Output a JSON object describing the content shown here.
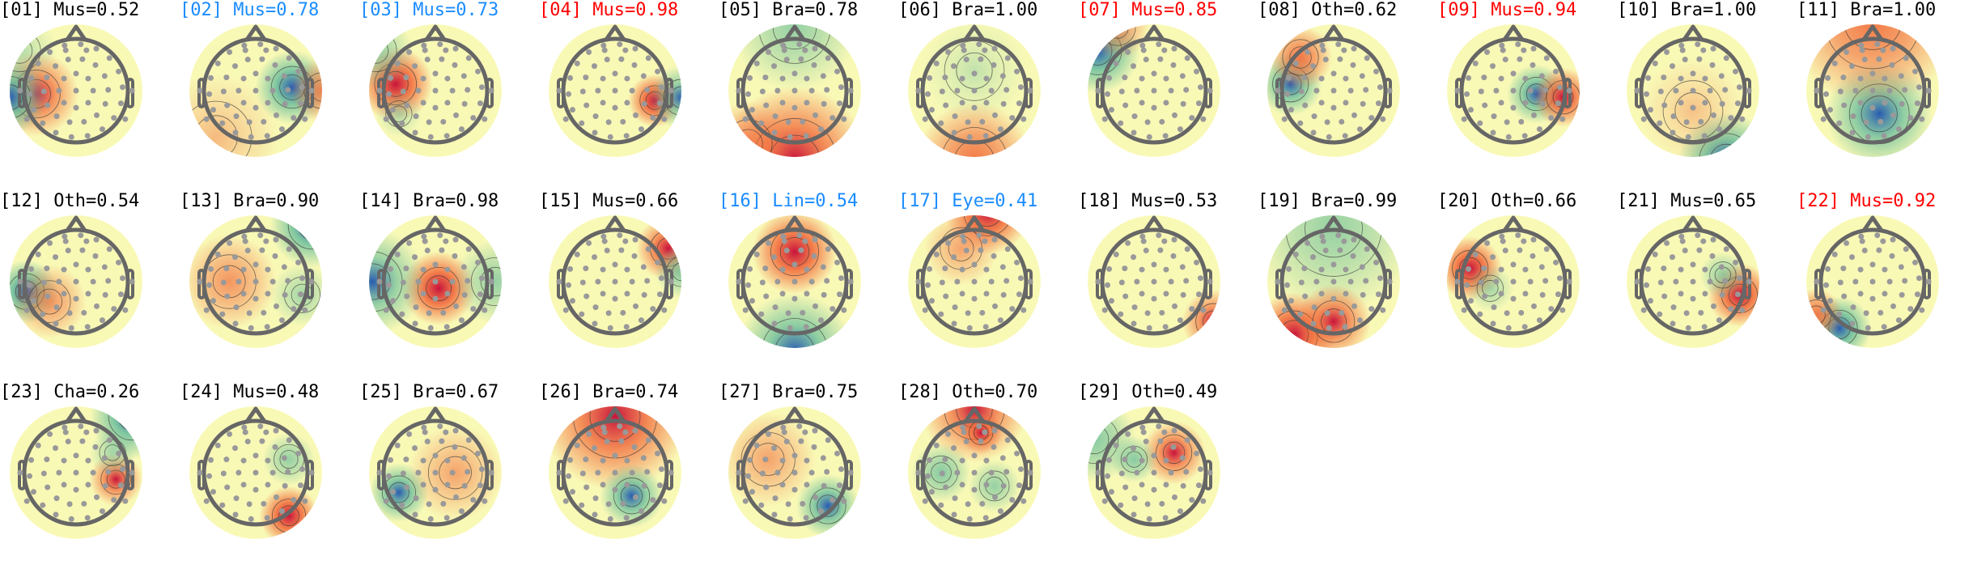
{
  "colors": {
    "default": "#000000",
    "blue": "#1a8cff",
    "red": "#ff0000",
    "pos_strong": "#c8143c",
    "pos": "#f26b3a",
    "neg_strong": "#2a5cb0",
    "neg": "#6cbf9c",
    "base": "#f9f9b6"
  },
  "chart_data": {
    "type": "heatmap",
    "layout": "grid of scalp topographic maps, 11 per row",
    "maps": [
      {
        "title": "[01] Mus=0.52",
        "label": "Mus",
        "score": 0.52,
        "color": "default"
      },
      {
        "title": "[02] Mus=0.78",
        "label": "Mus",
        "score": 0.78,
        "color": "blue"
      },
      {
        "title": "[03] Mus=0.73",
        "label": "Mus",
        "score": 0.73,
        "color": "blue"
      },
      {
        "title": "[04] Mus=0.98",
        "label": "Mus",
        "score": 0.98,
        "color": "red"
      },
      {
        "title": "[05] Bra=0.78",
        "label": "Bra",
        "score": 0.78,
        "color": "default"
      },
      {
        "title": "[06] Bra=1.00",
        "label": "Bra",
        "score": 1.0,
        "color": "default"
      },
      {
        "title": "[07] Mus=0.85",
        "label": "Mus",
        "score": 0.85,
        "color": "red"
      },
      {
        "title": "[08] Oth=0.62",
        "label": "Oth",
        "score": 0.62,
        "color": "default"
      },
      {
        "title": "[09] Mus=0.94",
        "label": "Mus",
        "score": 0.94,
        "color": "red"
      },
      {
        "title": "[10] Bra=1.00",
        "label": "Bra",
        "score": 1.0,
        "color": "default"
      },
      {
        "title": "[11] Bra=1.00",
        "label": "Bra",
        "score": 1.0,
        "color": "default"
      },
      {
        "title": "[12] Oth=0.54",
        "label": "Oth",
        "score": 0.54,
        "color": "default"
      },
      {
        "title": "[13] Bra=0.90",
        "label": "Bra",
        "score": 0.9,
        "color": "default"
      },
      {
        "title": "[14] Bra=0.98",
        "label": "Bra",
        "score": 0.98,
        "color": "default"
      },
      {
        "title": "[15] Mus=0.66",
        "label": "Mus",
        "score": 0.66,
        "color": "default"
      },
      {
        "title": "[16] Lin=0.54",
        "label": "Lin",
        "score": 0.54,
        "color": "blue"
      },
      {
        "title": "[17] Eye=0.41",
        "label": "Eye",
        "score": 0.41,
        "color": "blue"
      },
      {
        "title": "[18] Mus=0.53",
        "label": "Mus",
        "score": 0.53,
        "color": "default"
      },
      {
        "title": "[19] Bra=0.99",
        "label": "Bra",
        "score": 0.99,
        "color": "default"
      },
      {
        "title": "[20] Oth=0.66",
        "label": "Oth",
        "score": 0.66,
        "color": "default"
      },
      {
        "title": "[21] Mus=0.65",
        "label": "Mus",
        "score": 0.65,
        "color": "default"
      },
      {
        "title": "[22] Mus=0.92",
        "label": "Mus",
        "score": 0.92,
        "color": "red"
      },
      {
        "title": "[23] Cha=0.26",
        "label": "Cha",
        "score": 0.26,
        "color": "default"
      },
      {
        "title": "[24] Mus=0.48",
        "label": "Mus",
        "score": 0.48,
        "color": "default"
      },
      {
        "title": "[25] Bra=0.67",
        "label": "Bra",
        "score": 0.67,
        "color": "default"
      },
      {
        "title": "[26] Bra=0.74",
        "label": "Bra",
        "score": 0.74,
        "color": "default"
      },
      {
        "title": "[27] Bra=0.75",
        "label": "Bra",
        "score": 0.75,
        "color": "default"
      },
      {
        "title": "[28] Oth=0.70",
        "label": "Oth",
        "score": 0.7,
        "color": "default"
      },
      {
        "title": "[29] Oth=0.49",
        "label": "Oth",
        "score": 0.49,
        "color": "default"
      }
    ]
  }
}
